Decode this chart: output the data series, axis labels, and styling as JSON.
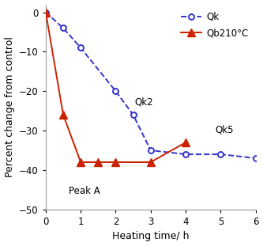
{
  "qk_x": [
    0,
    0.5,
    1.0,
    2.0,
    2.5,
    3.0,
    4.0,
    5.0,
    6.0
  ],
  "qk_y": [
    0,
    -4,
    -9,
    -20,
    -26,
    -35,
    -36,
    -36,
    -37
  ],
  "qb_x": [
    0,
    0.5,
    1.0,
    1.5,
    2.0,
    3.0,
    4.0
  ],
  "qb_y": [
    0,
    -26,
    -38,
    -38,
    -38,
    -38,
    -33
  ],
  "qk_color": "#3333cc",
  "qb_color": "#cc2200",
  "xlabel": "Heating time/ h",
  "ylabel": "Percent change from control",
  "ylim": [
    -50,
    2
  ],
  "xlim": [
    0,
    6
  ],
  "yticks": [
    0,
    -10,
    -20,
    -30,
    -40,
    -50
  ],
  "xticks": [
    0,
    1,
    2,
    3,
    4,
    5,
    6
  ],
  "ann_qk2_x": 2.55,
  "ann_qk2_y": -24,
  "ann_qk5_x": 4.85,
  "ann_qk5_y": -31,
  "ann_peaka_x": 0.65,
  "ann_peaka_y": -44,
  "legend_qk": "Qk",
  "legend_qb": "Qb210°C",
  "background_color": "#ffffff"
}
